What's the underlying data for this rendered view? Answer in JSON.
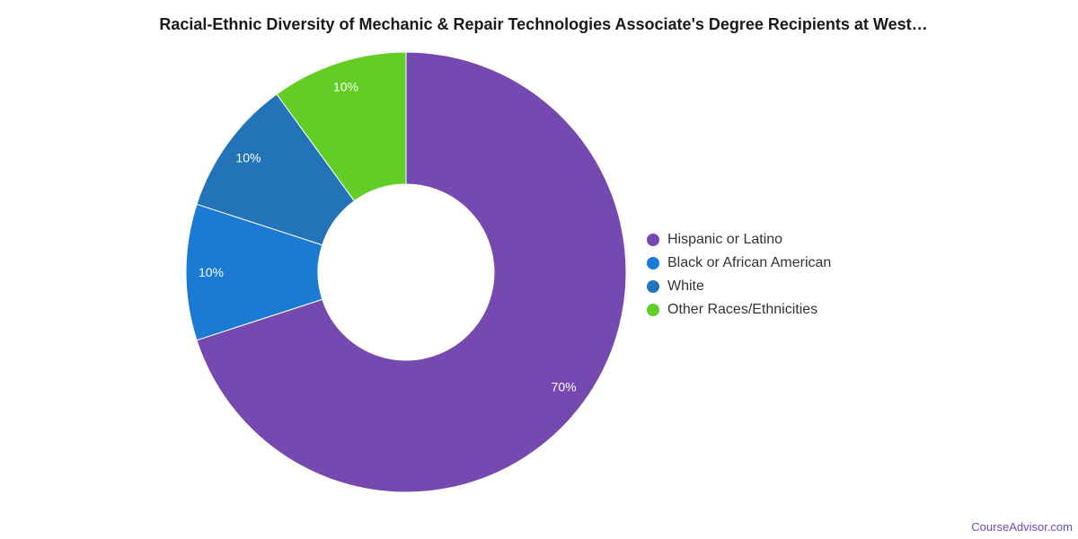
{
  "chart_data": {
    "type": "pie",
    "title": "Racial-Ethnic Diversity of Mechanic & Repair Technologies Associate's Degree Recipients at West…",
    "categories": [
      "Hispanic or Latino",
      "Black or African American",
      "White",
      "Other Races/Ethnicities"
    ],
    "values": [
      70,
      10,
      10,
      10
    ],
    "data_labels": [
      "70%",
      "10%",
      "10%",
      "10%"
    ],
    "colors": [
      "#7549b0",
      "#1a7ad4",
      "#2373b9",
      "#62cd25"
    ],
    "donut": true,
    "legend_position": "right"
  },
  "footer": {
    "source": "CourseAdvisor.com"
  }
}
